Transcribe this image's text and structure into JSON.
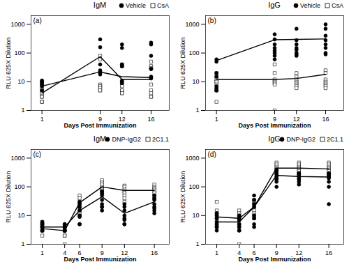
{
  "chart_data": [
    {
      "type": "scatter",
      "title": "IgM",
      "annotations": [
        "(a)"
      ],
      "xlabel": "Days Post Immunization",
      "ylabel": "RLU 625X Dilution",
      "log": "y",
      "grid": false,
      "legend": "upper right",
      "xlim": [
        -0.5,
        18.5
      ],
      "xticks": [
        1,
        9,
        12,
        16
      ],
      "ylim": [
        1,
        2000
      ],
      "yticks": [
        1,
        10,
        100,
        1000
      ],
      "series": [
        {
          "name": "Vehicle",
          "type": "scatter",
          "marker": "circle",
          "color": "#000000",
          "x": [
            1,
            1,
            1,
            1,
            1,
            1,
            1,
            1,
            9,
            9,
            9,
            9,
            9,
            9,
            9,
            9,
            12,
            12,
            12,
            12,
            12,
            12,
            12,
            12,
            16,
            16,
            16,
            16,
            16,
            16,
            16,
            16
          ],
          "values": [
            10,
            10,
            8,
            9,
            7,
            5,
            11,
            8,
            300,
            160,
            40,
            25,
            22,
            20,
            22,
            18,
            200,
            150,
            40,
            35,
            35,
            11,
            10,
            9,
            230,
            200,
            80,
            28,
            28,
            15,
            14,
            13
          ]
        },
        {
          "name": "CsA",
          "type": "scatter",
          "marker": "square",
          "color": "#ffffff",
          "x": [
            1,
            1,
            1,
            1,
            1,
            1,
            1,
            1,
            9,
            9,
            9,
            9,
            9,
            9,
            9,
            9,
            12,
            12,
            12,
            12,
            12,
            12,
            12,
            12,
            16,
            16,
            16,
            16,
            16,
            16,
            16,
            16
          ],
          "values": [
            6,
            5,
            4,
            4,
            3,
            3,
            2,
            2,
            80,
            60,
            8,
            7,
            7,
            6,
            5,
            5,
            40,
            35,
            8,
            7,
            5,
            5,
            4,
            4,
            50,
            35,
            30,
            8,
            5,
            4,
            3,
            3
          ]
        },
        {
          "type": "line",
          "color": "#000000",
          "x": [
            1,
            9,
            12,
            16
          ],
          "values": [
            7,
            22,
            15,
            14
          ]
        },
        {
          "type": "line",
          "color": "#000000",
          "x": [
            1,
            9,
            12,
            16
          ],
          "values": [
            4,
            75,
            12,
            12
          ]
        }
      ]
    },
    {
      "type": "scatter",
      "title": "IgG",
      "annotations": [
        "(b)"
      ],
      "xlabel": "Days Post Immunization",
      "ylabel": "RLU 625X Dilution",
      "log": "y",
      "grid": false,
      "legend": "upper right",
      "xlim": [
        -0.5,
        18.5
      ],
      "xticks": [
        1,
        9,
        12,
        16
      ],
      "ylim": [
        1,
        2000
      ],
      "yticks": [
        1,
        10,
        100,
        1000
      ],
      "series": [
        {
          "name": "Vehicle",
          "type": "scatter",
          "marker": "circle",
          "color": "#000000",
          "x": [
            1,
            1,
            1,
            1,
            1,
            1,
            1,
            1,
            9,
            9,
            9,
            9,
            9,
            9,
            9,
            9,
            12,
            12,
            12,
            12,
            12,
            12,
            12,
            12,
            16,
            16,
            16,
            16,
            16,
            16,
            16,
            16
          ],
          "values": [
            60,
            50,
            20,
            15,
            7,
            6,
            5,
            5,
            450,
            300,
            200,
            150,
            120,
            100,
            80,
            60,
            700,
            280,
            200,
            150,
            130,
            100,
            90,
            80,
            1000,
            700,
            400,
            280,
            200,
            150,
            100,
            90
          ]
        },
        {
          "name": "CsA",
          "type": "scatter",
          "marker": "square",
          "color": "#ffffff",
          "x": [
            1,
            1,
            1,
            1,
            1,
            1,
            1,
            1,
            9,
            9,
            9,
            9,
            9,
            9,
            9,
            9,
            12,
            12,
            12,
            12,
            12,
            12,
            12,
            12,
            16,
            16,
            16,
            16,
            16,
            16,
            16,
            16
          ],
          "values": [
            20,
            15,
            12,
            10,
            10,
            8,
            5,
            2,
            40,
            20,
            12,
            10,
            10,
            9,
            8,
            1,
            20,
            15,
            12,
            10,
            9,
            8,
            7,
            6,
            25,
            20,
            12,
            10,
            9,
            8,
            7,
            6
          ]
        },
        {
          "type": "line",
          "color": "#000000",
          "x": [
            1,
            9,
            12,
            16
          ],
          "values": [
            55,
            290,
            300,
            310
          ]
        },
        {
          "type": "line",
          "color": "#000000",
          "x": [
            1,
            9,
            12,
            16
          ],
          "values": [
            12,
            12,
            13,
            18
          ]
        }
      ]
    },
    {
      "type": "scatter",
      "title": "IgM",
      "annotations": [
        "(c)"
      ],
      "xlabel": "Days Post Immunization",
      "ylabel": "RLU 625X Dilution",
      "log": "y",
      "grid": false,
      "legend": "upper right",
      "xlim": [
        -0.5,
        18
      ],
      "xticks": [
        1,
        4,
        6,
        9,
        12,
        16
      ],
      "ylim": [
        1,
        2000
      ],
      "yticks": [
        1,
        10,
        100,
        1000
      ],
      "series": [
        {
          "name": "DNP-IgG2",
          "type": "scatter",
          "marker": "circle",
          "color": "#000000",
          "x": [
            1,
            1,
            1,
            1,
            1,
            1,
            1,
            1,
            4,
            4,
            4,
            4,
            4,
            4,
            4,
            4,
            6,
            6,
            6,
            6,
            6,
            6,
            6,
            6,
            9,
            9,
            9,
            9,
            9,
            9,
            9,
            9,
            12,
            12,
            12,
            12,
            12,
            12,
            12,
            12,
            16,
            16,
            16,
            16,
            16,
            16,
            16,
            16
          ],
          "values": [
            6,
            5,
            5,
            4,
            4,
            4,
            3,
            3,
            5,
            5,
            4,
            4,
            3,
            3,
            3,
            3,
            30,
            25,
            20,
            15,
            10,
            9,
            5,
            5,
            70,
            60,
            50,
            35,
            25,
            20,
            20,
            15,
            25,
            20,
            15,
            10,
            8,
            7,
            5,
            5,
            50,
            40,
            35,
            25,
            20,
            18,
            15,
            12
          ]
        },
        {
          "name": "2C1.1",
          "type": "scatter",
          "marker": "square",
          "color": "#ffffff",
          "x": [
            1,
            1,
            1,
            1,
            1,
            1,
            1,
            1,
            4,
            4,
            4,
            4,
            4,
            4,
            4,
            4,
            6,
            6,
            6,
            6,
            6,
            6,
            6,
            6,
            9,
            9,
            9,
            9,
            9,
            9,
            9,
            9,
            12,
            12,
            12,
            12,
            12,
            12,
            12,
            12,
            16,
            16,
            16,
            16,
            16,
            16,
            16,
            16
          ],
          "values": [
            6,
            5,
            5,
            4,
            4,
            3,
            3,
            2,
            4,
            4,
            3,
            3,
            3,
            2,
            2,
            1,
            50,
            40,
            30,
            25,
            20,
            15,
            12,
            10,
            170,
            140,
            120,
            100,
            90,
            80,
            70,
            60,
            110,
            100,
            80,
            70,
            60,
            50,
            40,
            30,
            120,
            100,
            90,
            80,
            70,
            60,
            50,
            40
          ]
        },
        {
          "type": "line",
          "color": "#000000",
          "x": [
            1,
            4,
            6,
            9,
            12,
            16
          ],
          "values": [
            4,
            4,
            15,
            45,
            12,
            30
          ]
        },
        {
          "type": "line",
          "color": "#000000",
          "x": [
            1,
            4,
            6,
            9,
            12,
            16
          ],
          "values": [
            3.5,
            3,
            28,
            100,
            75,
            75
          ]
        }
      ]
    },
    {
      "type": "scatter",
      "title": "IgG",
      "annotations": [
        "(d)"
      ],
      "xlabel": "Days Post Immunization",
      "ylabel": "RLU 625X Dilution",
      "log": "y",
      "grid": false,
      "legend": "upper right",
      "xlim": [
        -0.5,
        18
      ],
      "xticks": [
        1,
        4,
        6,
        9,
        12,
        16
      ],
      "ylim": [
        1,
        2000
      ],
      "yticks": [
        1,
        10,
        100,
        1000
      ],
      "series": [
        {
          "name": "DNP-IgG2",
          "type": "scatter",
          "marker": "circle",
          "color": "#000000",
          "x": [
            1,
            1,
            1,
            1,
            1,
            1,
            1,
            1,
            4,
            4,
            4,
            4,
            4,
            4,
            4,
            4,
            6,
            6,
            6,
            6,
            6,
            6,
            6,
            6,
            9,
            9,
            9,
            9,
            9,
            9,
            9,
            9,
            12,
            12,
            12,
            12,
            12,
            12,
            12,
            12,
            16,
            16,
            16,
            16,
            16,
            16,
            16,
            16
          ],
          "values": [
            12,
            10,
            8,
            6,
            5,
            4,
            4,
            3,
            10,
            9,
            8,
            7,
            5,
            4,
            3,
            3,
            50,
            35,
            25,
            20,
            10,
            8,
            5,
            4,
            400,
            350,
            280,
            230,
            200,
            180,
            150,
            100,
            300,
            280,
            250,
            220,
            200,
            180,
            150,
            120,
            300,
            280,
            250,
            220,
            200,
            150,
            100,
            25
          ]
        },
        {
          "name": "2C1.1",
          "type": "scatter",
          "marker": "square",
          "color": "#ffffff",
          "x": [
            1,
            1,
            1,
            1,
            1,
            1,
            1,
            1,
            4,
            4,
            4,
            4,
            4,
            4,
            4,
            4,
            6,
            6,
            6,
            6,
            6,
            6,
            6,
            6,
            9,
            9,
            9,
            9,
            9,
            9,
            9,
            9,
            12,
            12,
            12,
            12,
            12,
            12,
            12,
            12,
            16,
            16,
            16,
            16,
            16,
            16,
            16,
            16
          ],
          "values": [
            30,
            15,
            12,
            10,
            8,
            7,
            5,
            4,
            15,
            12,
            10,
            8,
            7,
            5,
            4,
            1,
            35,
            30,
            25,
            20,
            15,
            12,
            10,
            8,
            700,
            600,
            500,
            450,
            400,
            350,
            300,
            280,
            700,
            600,
            500,
            450,
            400,
            350,
            300,
            280,
            700,
            600,
            500,
            450,
            400,
            350,
            280,
            250
          ]
        },
        {
          "type": "line",
          "color": "#000000",
          "x": [
            1,
            4,
            6,
            9,
            12,
            16
          ],
          "values": [
            6,
            6,
            20,
            250,
            230,
            220
          ]
        },
        {
          "type": "line",
          "color": "#000000",
          "x": [
            1,
            4,
            6,
            9,
            12,
            16
          ],
          "values": [
            9,
            8,
            20,
            450,
            450,
            420
          ]
        }
      ]
    }
  ]
}
